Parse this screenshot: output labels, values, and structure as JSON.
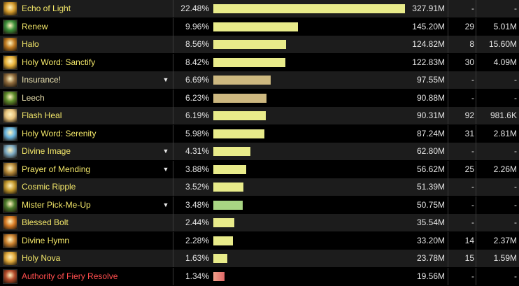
{
  "colors": {
    "name_default": "#f4e86a",
    "name_pet": "#ece2b0",
    "name_special": "#ff4d4d",
    "bar_default": "#e8eb8a",
    "bar_pet": "#cdb880",
    "bar_green": "#a8d583",
    "bar_red": "#e06868"
  },
  "rows": [
    {
      "icon": "echo-of-light-icon",
      "icon_color": "#d39a2c",
      "name": "Echo of Light",
      "dropdown": false,
      "percent": "22.48%",
      "bar_fraction": 1.0,
      "bar_color": "bar_default",
      "name_color": "name_default",
      "amount": "327.91M",
      "casts": "-",
      "per": "-"
    },
    {
      "icon": "renew-icon",
      "icon_color": "#3c8f3a",
      "name": "Renew",
      "dropdown": false,
      "percent": "9.96%",
      "bar_fraction": 0.443,
      "bar_color": "bar_default",
      "name_color": "name_default",
      "amount": "145.20M",
      "casts": "29",
      "per": "5.01M"
    },
    {
      "icon": "halo-icon",
      "icon_color": "#c07a20",
      "name": "Halo",
      "dropdown": false,
      "percent": "8.56%",
      "bar_fraction": 0.381,
      "bar_color": "bar_default",
      "name_color": "name_default",
      "amount": "124.82M",
      "casts": "8",
      "per": "15.60M"
    },
    {
      "icon": "holy-word-sanctify-icon",
      "icon_color": "#e7b13a",
      "name": "Holy Word: Sanctify",
      "dropdown": false,
      "percent": "8.42%",
      "bar_fraction": 0.375,
      "bar_color": "bar_default",
      "name_color": "name_default",
      "amount": "122.83M",
      "casts": "30",
      "per": "4.09M"
    },
    {
      "icon": "insurance-icon",
      "icon_color": "#8e6a3c",
      "name": "Insurance!",
      "dropdown": true,
      "percent": "6.69%",
      "bar_fraction": 0.298,
      "bar_color": "bar_pet",
      "name_color": "name_pet",
      "amount": "97.55M",
      "casts": "-",
      "per": "-"
    },
    {
      "icon": "leech-icon",
      "icon_color": "#5d8b2b",
      "name": "Leech",
      "dropdown": false,
      "percent": "6.23%",
      "bar_fraction": 0.277,
      "bar_color": "bar_pet",
      "name_color": "name_pet",
      "amount": "90.88M",
      "casts": "-",
      "per": "-"
    },
    {
      "icon": "flash-heal-icon",
      "icon_color": "#e6c27c",
      "name": "Flash Heal",
      "dropdown": false,
      "percent": "6.19%",
      "bar_fraction": 0.275,
      "bar_color": "bar_default",
      "name_color": "name_default",
      "amount": "90.31M",
      "casts": "92",
      "per": "981.6K"
    },
    {
      "icon": "holy-word-serenity-icon",
      "icon_color": "#6ab6e0",
      "name": "Holy Word: Serenity",
      "dropdown": false,
      "percent": "5.98%",
      "bar_fraction": 0.266,
      "bar_color": "bar_default",
      "name_color": "name_default",
      "amount": "87.24M",
      "casts": "31",
      "per": "2.81M"
    },
    {
      "icon": "divine-image-icon",
      "icon_color": "#7aa7c0",
      "name": "Divine Image",
      "dropdown": true,
      "percent": "4.31%",
      "bar_fraction": 0.192,
      "bar_color": "bar_default",
      "name_color": "name_default",
      "amount": "62.80M",
      "casts": "-",
      "per": "-"
    },
    {
      "icon": "prayer-of-mending-icon",
      "icon_color": "#b78a3a",
      "name": "Prayer of Mending",
      "dropdown": true,
      "percent": "3.88%",
      "bar_fraction": 0.173,
      "bar_color": "bar_default",
      "name_color": "name_default",
      "amount": "56.62M",
      "casts": "25",
      "per": "2.26M"
    },
    {
      "icon": "cosmic-ripple-icon",
      "icon_color": "#c59a2e",
      "name": "Cosmic Ripple",
      "dropdown": false,
      "percent": "3.52%",
      "bar_fraction": 0.157,
      "bar_color": "bar_default",
      "name_color": "name_default",
      "amount": "51.39M",
      "casts": "-",
      "per": "-"
    },
    {
      "icon": "mister-pick-me-up-icon",
      "icon_color": "#4a7a2a",
      "name": "Mister Pick-Me-Up",
      "dropdown": true,
      "percent": "3.48%",
      "bar_fraction": 0.155,
      "bar_color": "bar_green",
      "name_color": "name_default",
      "amount": "50.75M",
      "casts": "-",
      "per": "-"
    },
    {
      "icon": "blessed-bolt-icon",
      "icon_color": "#d77a24",
      "name": "Blessed Bolt",
      "dropdown": false,
      "percent": "2.44%",
      "bar_fraction": 0.109,
      "bar_color": "bar_default",
      "name_color": "name_default",
      "amount": "35.54M",
      "casts": "-",
      "per": "-"
    },
    {
      "icon": "divine-hymn-icon",
      "icon_color": "#c9802e",
      "name": "Divine Hymn",
      "dropdown": false,
      "percent": "2.28%",
      "bar_fraction": 0.101,
      "bar_color": "bar_default",
      "name_color": "name_default",
      "amount": "33.20M",
      "casts": "14",
      "per": "2.37M"
    },
    {
      "icon": "holy-nova-icon",
      "icon_color": "#e0a83a",
      "name": "Holy Nova",
      "dropdown": false,
      "percent": "1.63%",
      "bar_fraction": 0.073,
      "bar_color": "bar_default",
      "name_color": "name_default",
      "amount": "23.78M",
      "casts": "15",
      "per": "1.59M"
    },
    {
      "icon": "authority-of-fiery-resolve-icon",
      "icon_color": "#b34a2a",
      "name": "Authority of Fiery Resolve",
      "dropdown": false,
      "percent": "1.34%",
      "bar_fraction": 0.06,
      "bar_color": "bar_red",
      "name_color": "name_special",
      "amount": "19.56M",
      "casts": "-",
      "per": "-"
    }
  ]
}
